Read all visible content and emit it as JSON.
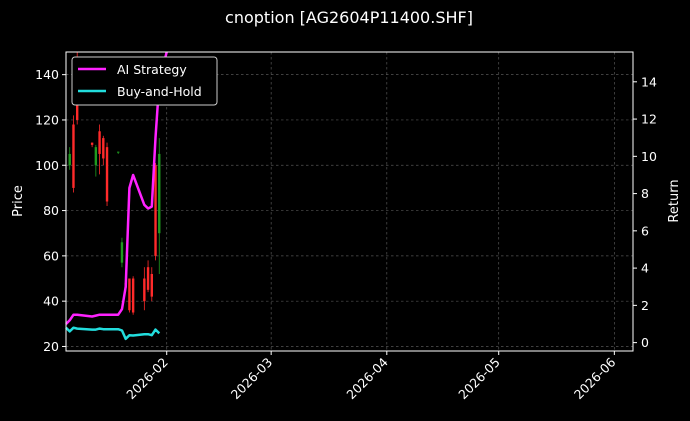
{
  "chart_data": {
    "type": "line",
    "title": "cnoption [AG2604P11400.SHF]",
    "ylabel_left": "Price",
    "ylabel_right": "Return",
    "xlim": [
      "2026-01-05",
      "2026-06-06"
    ],
    "ylim_left": [
      18,
      150
    ],
    "ylim_right": [
      -0.45,
      15.6
    ],
    "x_ticks": [
      "2026-02-01",
      "2026-03-01",
      "2026-04-01",
      "2026-05-01",
      "2026-06-01"
    ],
    "x_tick_labels": [
      "2026-02",
      "2026-03",
      "2026-04",
      "2026-05",
      "2026-06"
    ],
    "y_left_ticks": [
      20,
      40,
      60,
      80,
      100,
      120,
      140
    ],
    "y_right_ticks": [
      0,
      2,
      4,
      6,
      8,
      10,
      12,
      14
    ],
    "grid": true,
    "legend_position": "top-left",
    "candles": [
      {
        "date": "2026-01-06",
        "open": 100,
        "close": 105,
        "high": 108,
        "low": 98
      },
      {
        "date": "2026-01-07",
        "open": 118,
        "close": 90,
        "high": 122,
        "low": 88
      },
      {
        "date": "2026-01-08",
        "open": 128,
        "close": 120,
        "high": 150,
        "low": 118
      },
      {
        "date": "2026-01-12",
        "open": 110,
        "close": 109,
        "high": 110,
        "low": 108
      },
      {
        "date": "2026-01-13",
        "open": 100,
        "close": 108,
        "high": 109,
        "low": 95
      },
      {
        "date": "2026-01-14",
        "open": 115,
        "close": 105,
        "high": 118,
        "low": 96
      },
      {
        "date": "2026-01-15",
        "open": 112,
        "close": 103,
        "high": 113,
        "low": 100
      },
      {
        "date": "2026-01-16",
        "open": 108,
        "close": 84,
        "high": 110,
        "low": 82
      },
      {
        "date": "2026-01-19",
        "open": 106,
        "close": 106,
        "high": 106,
        "low": 105
      },
      {
        "date": "2026-01-20",
        "open": 57,
        "close": 66,
        "high": 68,
        "low": 55
      },
      {
        "date": "2026-01-21",
        "open": 48,
        "close": 46,
        "high": 50,
        "low": 44
      },
      {
        "date": "2026-01-22",
        "open": 50,
        "close": 36,
        "high": 50,
        "low": 35
      },
      {
        "date": "2026-01-23",
        "open": 50,
        "close": 35,
        "high": 51,
        "low": 34
      },
      {
        "date": "2026-01-26",
        "open": 50,
        "close": 40,
        "high": 55,
        "low": 36
      },
      {
        "date": "2026-01-27",
        "open": 55,
        "close": 45,
        "high": 58,
        "low": 44
      },
      {
        "date": "2026-01-28",
        "open": 52,
        "close": 42,
        "high": 55,
        "low": 40
      },
      {
        "date": "2026-01-29",
        "open": 100,
        "close": 60,
        "high": 101,
        "low": 58
      },
      {
        "date": "2026-01-30",
        "open": 70,
        "close": 105,
        "high": 112,
        "low": 52
      }
    ],
    "series": [
      {
        "name": "AI Strategy",
        "axis": "right",
        "color": "#ff22ff",
        "x": [
          "2026-01-05",
          "2026-01-06",
          "2026-01-07",
          "2026-01-08",
          "2026-01-12",
          "2026-01-13",
          "2026-01-14",
          "2026-01-15",
          "2026-01-16",
          "2026-01-19",
          "2026-01-20",
          "2026-01-21",
          "2026-01-22",
          "2026-01-23",
          "2026-01-26",
          "2026-01-27",
          "2026-01-28",
          "2026-01-29",
          "2026-01-30",
          "2026-02-01"
        ],
        "values": [
          1.0,
          1.2,
          1.5,
          1.5,
          1.4,
          1.45,
          1.5,
          1.5,
          1.5,
          1.5,
          1.8,
          3.0,
          8.3,
          9.0,
          7.4,
          7.2,
          7.3,
          11.0,
          14.0,
          15.6
        ]
      },
      {
        "name": "Buy-and-Hold",
        "axis": "right",
        "color": "#22dddd",
        "x": [
          "2026-01-05",
          "2026-01-06",
          "2026-01-07",
          "2026-01-08",
          "2026-01-12",
          "2026-01-13",
          "2026-01-14",
          "2026-01-15",
          "2026-01-16",
          "2026-01-19",
          "2026-01-20",
          "2026-01-21",
          "2026-01-22",
          "2026-01-23",
          "2026-01-26",
          "2026-01-27",
          "2026-01-28",
          "2026-01-29",
          "2026-01-30"
        ],
        "values": [
          0.8,
          0.6,
          0.8,
          0.75,
          0.7,
          0.7,
          0.75,
          0.72,
          0.72,
          0.72,
          0.65,
          0.2,
          0.4,
          0.38,
          0.45,
          0.45,
          0.4,
          0.7,
          0.5
        ]
      }
    ],
    "colors": {
      "up": "#1f9b1f",
      "down": "#ff2a2a",
      "grid": "#555555",
      "axes": "#ffffff",
      "legend_bg": "#000000",
      "legend_border": "#cccccc"
    }
  }
}
